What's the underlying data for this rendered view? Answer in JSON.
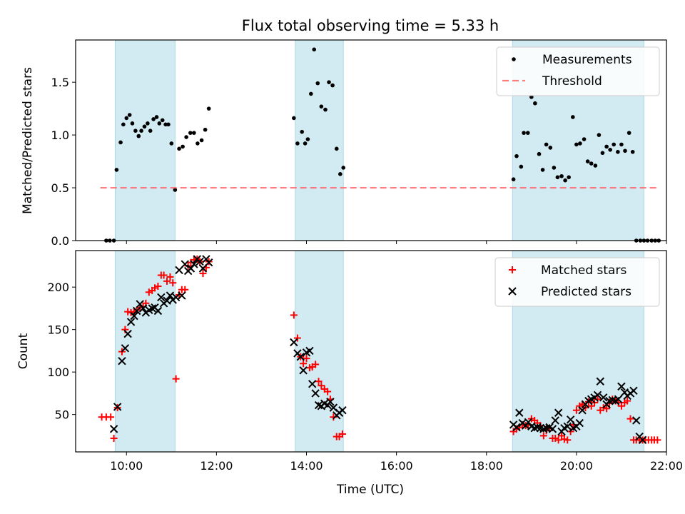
{
  "colors": {
    "shade": "#add8e6",
    "measurement": "#000000",
    "threshold": "#ff6666",
    "matched": "#ff0000",
    "predicted": "#000000"
  },
  "chart_data": [
    {
      "type": "scatter",
      "title": "Flux total observing time = 5.33 h",
      "ylabel": "Matched/Predicted stars",
      "xlim": [
        8.87,
        22.0
      ],
      "ylim": [
        0,
        1.9
      ],
      "yticks": [
        "0.0",
        "0.5",
        "1.0",
        "1.5"
      ],
      "grid": false,
      "legend": "top-right",
      "shaded_intervals": [
        [
          9.75,
          11.08
        ],
        [
          13.75,
          14.82
        ],
        [
          18.58,
          21.5
        ]
      ],
      "series": [
        {
          "name": "Measurements",
          "marker": "dot",
          "x": [
            9.55,
            9.63,
            9.72,
            9.78,
            9.87,
            9.93,
            10.0,
            10.07,
            10.13,
            10.2,
            10.27,
            10.33,
            10.4,
            10.47,
            10.53,
            10.6,
            10.67,
            10.73,
            10.8,
            10.87,
            10.93,
            11.0,
            11.08,
            11.17,
            11.25,
            11.33,
            11.42,
            11.5,
            11.58,
            11.67,
            11.75,
            11.83,
            13.72,
            13.8,
            13.9,
            13.97,
            14.03,
            14.1,
            14.17,
            14.25,
            14.33,
            14.42,
            14.5,
            14.58,
            14.67,
            14.75,
            14.82,
            18.6,
            18.67,
            18.77,
            18.83,
            18.92,
            19.0,
            19.08,
            19.17,
            19.25,
            19.33,
            19.42,
            19.5,
            19.58,
            19.67,
            19.75,
            19.83,
            19.92,
            20.0,
            20.08,
            20.17,
            20.25,
            20.33,
            20.42,
            20.5,
            20.58,
            20.67,
            20.75,
            20.83,
            20.92,
            21.0,
            21.08,
            21.17,
            21.25,
            21.33,
            21.42,
            21.5,
            21.58,
            21.67,
            21.75,
            21.83
          ],
          "y": [
            0.0,
            0.0,
            0.0,
            0.67,
            0.93,
            1.1,
            1.16,
            1.19,
            1.11,
            1.04,
            0.99,
            1.04,
            1.08,
            1.11,
            1.04,
            1.15,
            1.17,
            1.11,
            1.14,
            1.1,
            1.1,
            0.92,
            0.48,
            0.87,
            0.89,
            0.98,
            1.02,
            1.02,
            0.92,
            0.95,
            1.05,
            1.25,
            1.16,
            0.92,
            1.03,
            0.92,
            0.96,
            1.39,
            1.81,
            1.49,
            1.27,
            1.24,
            1.5,
            1.47,
            0.87,
            0.63,
            0.69,
            0.58,
            0.8,
            0.7,
            1.02,
            1.02,
            1.36,
            1.3,
            0.82,
            0.67,
            0.91,
            0.88,
            0.69,
            0.6,
            0.61,
            0.57,
            0.6,
            1.17,
            0.91,
            0.92,
            0.96,
            0.75,
            0.73,
            0.71,
            1.0,
            0.83,
            0.89,
            0.86,
            0.91,
            0.84,
            0.91,
            0.85,
            1.02,
            0.84,
            0.0,
            0.0,
            0.0,
            0.0,
            0.0,
            0.0,
            0.0
          ]
        },
        {
          "name": "Threshold",
          "marker": "dashed-line",
          "x": [
            9.42,
            21.83
          ],
          "y": [
            0.5,
            0.5
          ]
        }
      ]
    },
    {
      "type": "scatter",
      "xlabel": "Time (UTC)",
      "ylabel": "Count",
      "xlim": [
        8.87,
        22.0
      ],
      "ylim": [
        6,
        243
      ],
      "xticks": [
        "10:00",
        "12:00",
        "14:00",
        "16:00",
        "18:00",
        "20:00",
        "22:00"
      ],
      "yticks": [
        "50",
        "100",
        "150",
        "200"
      ],
      "grid": false,
      "legend": "top-right",
      "shaded_intervals": [
        [
          9.75,
          11.08
        ],
        [
          13.75,
          14.82
        ],
        [
          18.58,
          21.5
        ]
      ],
      "series": [
        {
          "name": "Matched stars",
          "marker": "plus",
          "x": [
            9.45,
            9.55,
            9.65,
            9.72,
            9.8,
            9.9,
            9.97,
            10.03,
            10.1,
            10.17,
            10.23,
            10.3,
            10.37,
            10.43,
            10.5,
            10.57,
            10.63,
            10.7,
            10.77,
            10.83,
            10.9,
            10.97,
            11.03,
            11.1,
            11.17,
            11.23,
            11.3,
            11.37,
            11.43,
            11.5,
            11.57,
            11.63,
            11.7,
            11.77,
            11.83,
            13.72,
            13.8,
            13.87,
            13.93,
            14.0,
            14.07,
            14.13,
            14.2,
            14.27,
            14.33,
            14.4,
            14.47,
            14.53,
            14.6,
            14.67,
            14.73,
            14.8,
            18.6,
            18.67,
            18.73,
            18.8,
            18.87,
            18.93,
            19.0,
            19.07,
            19.13,
            19.2,
            19.27,
            19.33,
            19.4,
            19.47,
            19.53,
            19.6,
            19.67,
            19.73,
            19.8,
            19.87,
            19.93,
            20.0,
            20.07,
            20.13,
            20.2,
            20.27,
            20.33,
            20.4,
            20.47,
            20.53,
            20.6,
            20.67,
            20.73,
            20.8,
            20.87,
            20.93,
            21.0,
            21.07,
            21.13,
            21.2,
            21.27,
            21.33,
            21.4,
            21.47,
            21.53,
            21.6,
            21.67,
            21.73,
            21.8
          ],
          "y": [
            47,
            47,
            47,
            22,
            58,
            124,
            150,
            171,
            170,
            171,
            173,
            176,
            177,
            181,
            194,
            196,
            199,
            201,
            214,
            214,
            207,
            212,
            205,
            92,
            191,
            197,
            197,
            225,
            229,
            232,
            233,
            230,
            216,
            223,
            230,
            167,
            140,
            118,
            110,
            116,
            105,
            106,
            109,
            89,
            84,
            80,
            77,
            68,
            47,
            24,
            24,
            27,
            30,
            33,
            35,
            38,
            37,
            38,
            45,
            43,
            40,
            37,
            25,
            31,
            34,
            22,
            22,
            20,
            25,
            21,
            20,
            30,
            38,
            55,
            60,
            62,
            58,
            65,
            60,
            64,
            68,
            55,
            58,
            57,
            63,
            68,
            66,
            64,
            60,
            64,
            66,
            45,
            20,
            20,
            20,
            20,
            20,
            20,
            20,
            20,
            20
          ],
          "_note_ignore": ""
        },
        {
          "name": "Predicted stars",
          "marker": "x",
          "x": [
            9.72,
            9.8,
            9.9,
            9.97,
            10.03,
            10.1,
            10.17,
            10.23,
            10.3,
            10.37,
            10.43,
            10.5,
            10.57,
            10.63,
            10.7,
            10.77,
            10.83,
            10.9,
            10.97,
            11.03,
            11.1,
            11.17,
            11.23,
            11.3,
            11.37,
            11.43,
            11.5,
            11.57,
            11.63,
            11.7,
            11.77,
            11.83,
            13.72,
            13.8,
            13.87,
            13.93,
            14.0,
            14.07,
            14.13,
            14.2,
            14.27,
            14.33,
            14.4,
            14.47,
            14.53,
            14.6,
            14.67,
            14.73,
            14.8,
            18.6,
            18.67,
            18.73,
            18.8,
            18.87,
            18.93,
            19.0,
            19.07,
            19.13,
            19.2,
            19.27,
            19.33,
            19.4,
            19.47,
            19.53,
            19.6,
            19.67,
            19.73,
            19.8,
            19.87,
            19.93,
            20.0,
            20.07,
            20.13,
            20.2,
            20.27,
            20.33,
            20.4,
            20.47,
            20.53,
            20.6,
            20.67,
            20.73,
            20.8,
            20.87,
            20.93,
            21.0,
            21.07,
            21.13,
            21.2,
            21.27,
            21.33,
            21.4,
            21.47
          ],
          "y": [
            33,
            59,
            113,
            128,
            145,
            159,
            166,
            172,
            180,
            175,
            170,
            173,
            175,
            176,
            172,
            188,
            181,
            184,
            190,
            185,
            188,
            220,
            190,
            227,
            219,
            222,
            227,
            233,
            230,
            222,
            233,
            229,
            135,
            122,
            118,
            102,
            123,
            125,
            86,
            75,
            61,
            60,
            63,
            61,
            65,
            58,
            49,
            52,
            55,
            38,
            35,
            52,
            40,
            37,
            41,
            36,
            34,
            35,
            34,
            33,
            34,
            35,
            33,
            43,
            52,
            30,
            34,
            36,
            44,
            34,
            36,
            40,
            55,
            62,
            66,
            68,
            70,
            73,
            89,
            70,
            62,
            66,
            67,
            66,
            68,
            83,
            76,
            72,
            75,
            78,
            43,
            24,
            20
          ],
          "_note_ignore": ""
        }
      ]
    }
  ]
}
